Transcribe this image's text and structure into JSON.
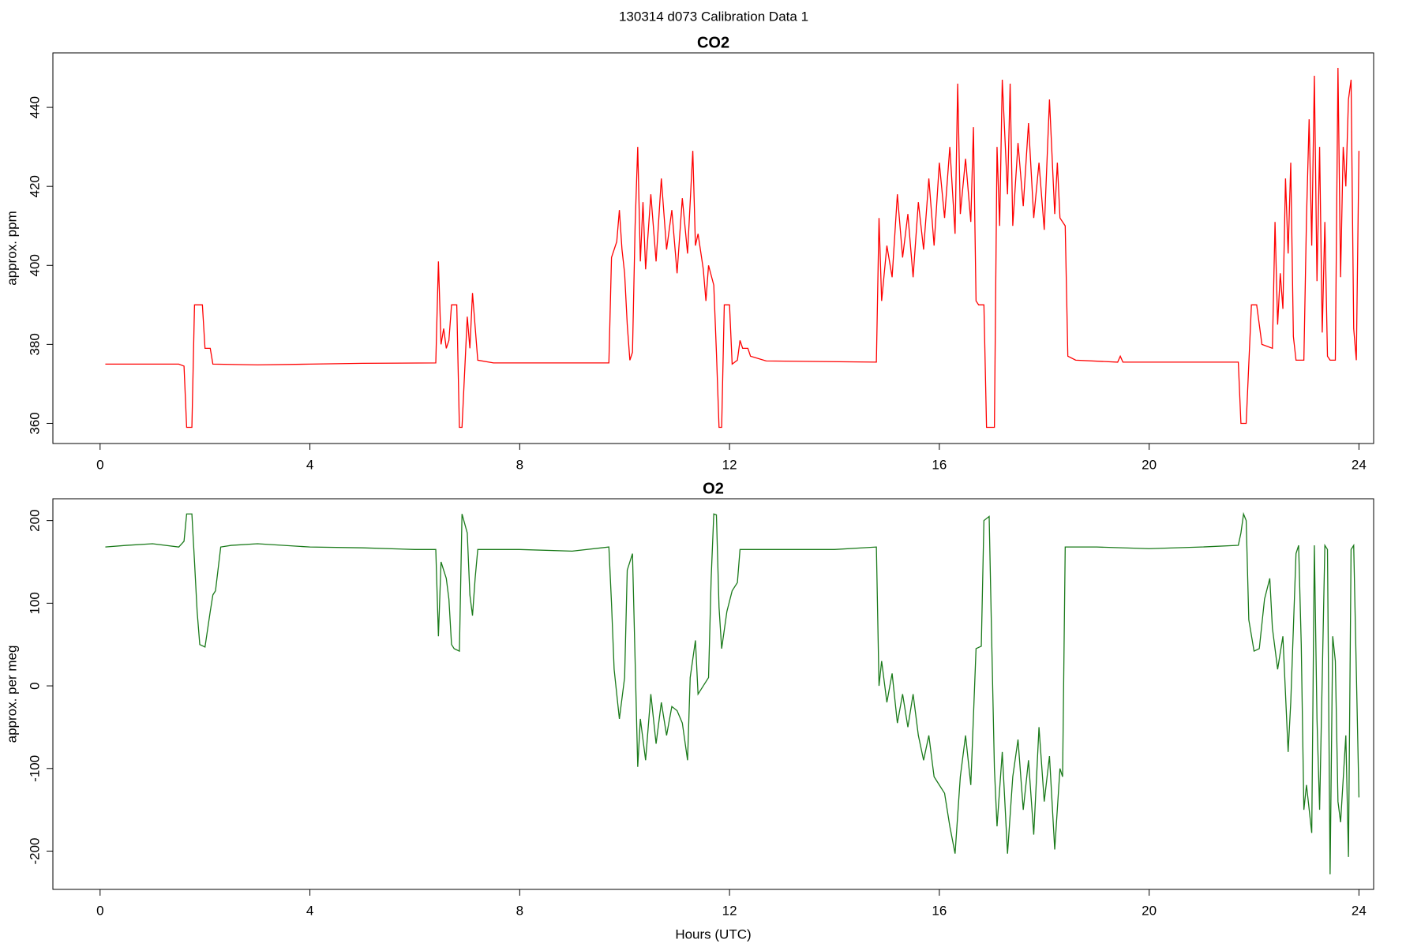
{
  "title": "130314   d073   Calibration Data 1",
  "chart_data": [
    {
      "type": "line",
      "title": "CO2",
      "ylabel": "approx. ppm",
      "xlim": [
        -0.9,
        24.28
      ],
      "xticks": [
        0,
        4,
        8,
        12,
        16,
        20,
        24
      ],
      "ylim": [
        354.9,
        453.8
      ],
      "yticks": [
        360,
        380,
        400,
        420,
        440
      ],
      "series": [
        {
          "color": "#ff0000",
          "x": [
            0.1,
            1.5,
            1.6,
            1.65,
            1.75,
            1.8,
            1.95,
            2.0,
            2.1,
            2.15,
            3,
            4,
            5,
            6.4,
            6.45,
            6.5,
            6.55,
            6.6,
            6.65,
            6.7,
            6.8,
            6.85,
            6.9,
            7.0,
            7.05,
            7.1,
            7.2,
            7.5,
            9.7,
            9.75,
            9.85,
            9.9,
            9.95,
            10.0,
            10.05,
            10.1,
            10.15,
            10.2,
            10.25,
            10.3,
            10.35,
            10.4,
            10.5,
            10.6,
            10.7,
            10.8,
            10.9,
            11.0,
            11.1,
            11.2,
            11.3,
            11.35,
            11.4,
            11.5,
            11.55,
            11.6,
            11.7,
            11.75,
            11.8,
            11.85,
            11.9,
            12.0,
            12.05,
            12.15,
            12.2,
            12.25,
            12.35,
            12.4,
            12.7,
            14.8,
            14.85,
            14.9,
            15.0,
            15.1,
            15.2,
            15.3,
            15.4,
            15.5,
            15.6,
            15.7,
            15.8,
            15.9,
            16.0,
            16.1,
            16.2,
            16.3,
            16.35,
            16.4,
            16.5,
            16.6,
            16.65,
            16.7,
            16.75,
            16.85,
            16.9,
            17.05,
            17.1,
            17.15,
            17.2,
            17.3,
            17.35,
            17.4,
            17.5,
            17.6,
            17.7,
            17.8,
            17.9,
            18.0,
            18.1,
            18.2,
            18.25,
            18.3,
            18.4,
            18.45,
            18.6,
            19.4,
            19.45,
            19.5,
            21.7,
            21.75,
            21.85,
            21.95,
            22.05,
            22.15,
            22.35,
            22.4,
            22.45,
            22.5,
            22.55,
            22.6,
            22.65,
            22.7,
            22.75,
            22.8,
            22.95,
            23.0,
            23.05,
            23.1,
            23.15,
            23.2,
            23.25,
            23.3,
            23.35,
            23.4,
            23.45,
            23.55,
            23.6,
            23.65,
            23.7,
            23.75,
            23.8,
            23.85,
            23.9,
            23.95,
            24.0
          ],
          "values": [
            375,
            375,
            374.5,
            359,
            359,
            390,
            390,
            379,
            379,
            375,
            374.8,
            375,
            375.2,
            375.3,
            401,
            380,
            384,
            379,
            381,
            390,
            390,
            359,
            359,
            387,
            379,
            393,
            376,
            375.3,
            375.3,
            402,
            406,
            414,
            404,
            398,
            385,
            376,
            378,
            410,
            430,
            401,
            416,
            399,
            418,
            401,
            422,
            404,
            414,
            398,
            417,
            403,
            429,
            405,
            408,
            399,
            391,
            400,
            395,
            378,
            359,
            359,
            390,
            390,
            375,
            376,
            381,
            379,
            379,
            377,
            375.8,
            375.5,
            412,
            391,
            405,
            397,
            418,
            402,
            413,
            397,
            416,
            404,
            422,
            405,
            426,
            412,
            430,
            408,
            446,
            413,
            427,
            411,
            435,
            391,
            390,
            390,
            359,
            359,
            430,
            410,
            447,
            418,
            446,
            410,
            431,
            415,
            436,
            412,
            426,
            409,
            442,
            413,
            426,
            412,
            410,
            377,
            376,
            375.5,
            377,
            375.5,
            375.5,
            360,
            360,
            390,
            390,
            380,
            379,
            411,
            385,
            398,
            389,
            422,
            403,
            426,
            382,
            376,
            376,
            412,
            437,
            405,
            448,
            396,
            430,
            383,
            411,
            377,
            376,
            376,
            450,
            397,
            430,
            420,
            442,
            447,
            384,
            376,
            429
          ]
        }
      ]
    },
    {
      "type": "line",
      "title": "O2",
      "ylabel": "approx. per meg",
      "xlabel": "Hours (UTC)",
      "xlim": [
        -0.9,
        24.28
      ],
      "xticks": [
        0,
        4,
        8,
        12,
        16,
        20,
        24
      ],
      "ylim": [
        -246.3,
        226.4
      ],
      "yticks": [
        -200,
        -100,
        0,
        100,
        200
      ],
      "series": [
        {
          "color": "#1a7a1a",
          "x": [
            0.1,
            0.5,
            1.0,
            1.5,
            1.6,
            1.65,
            1.75,
            1.8,
            1.85,
            1.9,
            2.0,
            2.1,
            2.15,
            2.2,
            2.3,
            2.5,
            3,
            4,
            5,
            6,
            6.4,
            6.45,
            6.5,
            6.6,
            6.65,
            6.7,
            6.75,
            6.85,
            6.9,
            7.0,
            7.05,
            7.1,
            7.15,
            7.2,
            8,
            9,
            9.7,
            9.75,
            9.8,
            9.9,
            10.0,
            10.05,
            10.15,
            10.25,
            10.3,
            10.4,
            10.5,
            10.6,
            10.7,
            10.8,
            10.9,
            11.0,
            11.1,
            11.2,
            11.25,
            11.35,
            11.4,
            11.5,
            11.6,
            11.65,
            11.7,
            11.75,
            11.8,
            11.85,
            11.95,
            12.05,
            12.15,
            12.2,
            13,
            14,
            14.8,
            14.85,
            14.9,
            15.0,
            15.1,
            15.2,
            15.3,
            15.4,
            15.5,
            15.6,
            15.7,
            15.8,
            15.9,
            16.0,
            16.1,
            16.2,
            16.3,
            16.4,
            16.5,
            16.6,
            16.7,
            16.8,
            16.85,
            16.95,
            17.0,
            17.05,
            17.1,
            17.2,
            17.3,
            17.4,
            17.5,
            17.6,
            17.7,
            17.8,
            17.9,
            18.0,
            18.1,
            18.2,
            18.3,
            18.35,
            18.4,
            19,
            20,
            21,
            21.7,
            21.75,
            21.8,
            21.85,
            21.9,
            22.0,
            22.1,
            22.2,
            22.3,
            22.35,
            22.45,
            22.55,
            22.65,
            22.7,
            22.8,
            22.85,
            22.9,
            22.95,
            23.0,
            23.1,
            23.15,
            23.2,
            23.25,
            23.35,
            23.4,
            23.45,
            23.5,
            23.55,
            23.6,
            23.65,
            23.75,
            23.8,
            23.85,
            23.9,
            24.0
          ],
          "values": [
            168,
            170,
            172,
            168,
            175,
            208,
            208,
            150,
            90,
            50,
            47,
            90,
            110,
            115,
            168,
            170,
            172,
            168,
            167,
            165,
            165,
            60,
            150,
            130,
            105,
            50,
            45,
            42,
            208,
            185,
            110,
            85,
            130,
            165,
            165,
            163,
            168,
            100,
            20,
            -40,
            10,
            140,
            160,
            -98,
            -40,
            -90,
            -10,
            -70,
            -20,
            -60,
            -25,
            -30,
            -45,
            -90,
            10,
            55,
            -10,
            0,
            10,
            130,
            208,
            207,
            95,
            45,
            90,
            115,
            125,
            165,
            165,
            165,
            168,
            0,
            30,
            -20,
            15,
            -45,
            -10,
            -50,
            -10,
            -60,
            -90,
            -60,
            -110,
            -120,
            -130,
            -170,
            -203,
            -110,
            -60,
            -120,
            45,
            48,
            200,
            205,
            50,
            -100,
            -170,
            -80,
            -203,
            -110,
            -65,
            -150,
            -90,
            -180,
            -50,
            -140,
            -85,
            -198,
            -100,
            -110,
            168,
            168,
            166,
            168,
            170,
            185,
            208,
            200,
            80,
            42,
            45,
            105,
            130,
            70,
            20,
            60,
            -80,
            -20,
            160,
            170,
            50,
            -150,
            -120,
            -178,
            170,
            -40,
            -150,
            170,
            165,
            -228,
            60,
            30,
            -140,
            -165,
            -60,
            -207,
            165,
            170,
            -135
          ]
        }
      ]
    }
  ]
}
